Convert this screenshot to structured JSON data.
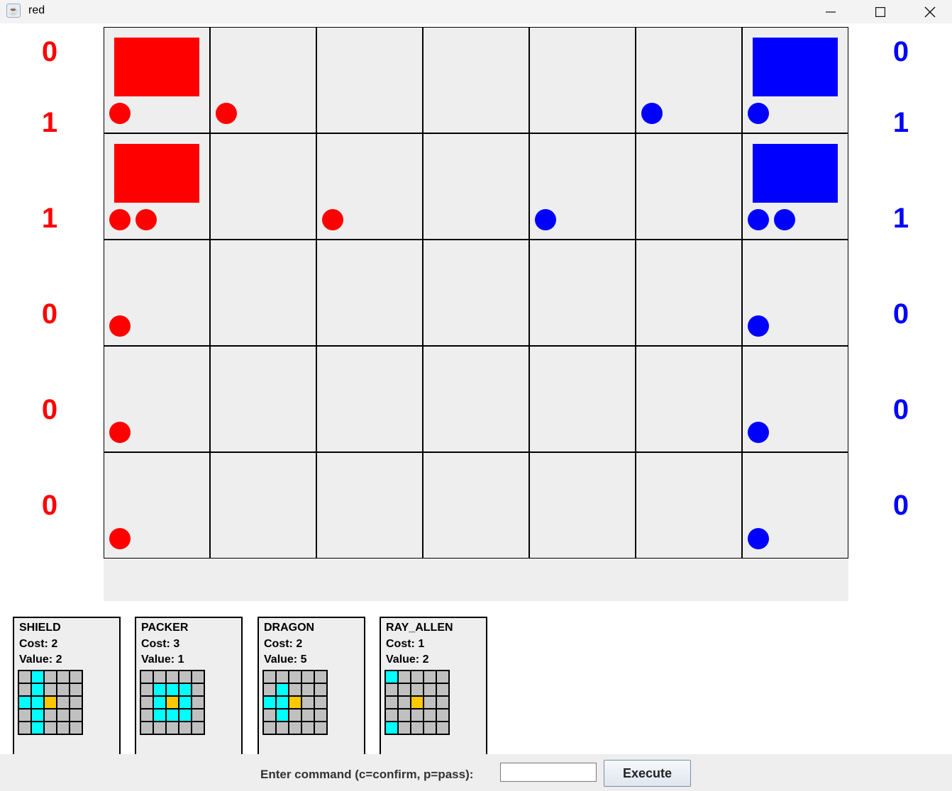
{
  "window": {
    "title": "red",
    "controls": [
      "minimize-icon",
      "maximize-icon",
      "close-icon"
    ]
  },
  "colors": {
    "red": "#ff0000",
    "blue": "#0000ff",
    "cell": "#eeeeee",
    "pattern_empty": "#c0c0c0",
    "pattern_range": "#00ffff",
    "pattern_center": "#ffc800"
  },
  "board": {
    "rows": 5,
    "cols": 7,
    "cells": [
      {
        "row": 0,
        "col": 0,
        "base": "red",
        "pieces": [
          "red"
        ]
      },
      {
        "row": 0,
        "col": 1,
        "pieces": [
          "red"
        ]
      },
      {
        "row": 0,
        "col": 5,
        "pieces": [
          "blue"
        ]
      },
      {
        "row": 0,
        "col": 6,
        "base": "blue",
        "pieces": [
          "blue"
        ]
      },
      {
        "row": 1,
        "col": 0,
        "base": "red",
        "pieces": [
          "red",
          "red"
        ]
      },
      {
        "row": 1,
        "col": 2,
        "pieces": [
          "red"
        ]
      },
      {
        "row": 1,
        "col": 4,
        "pieces": [
          "blue"
        ]
      },
      {
        "row": 1,
        "col": 6,
        "base": "blue",
        "pieces": [
          "blue",
          "blue"
        ]
      },
      {
        "row": 2,
        "col": 0,
        "pieces": [
          "red"
        ]
      },
      {
        "row": 2,
        "col": 6,
        "pieces": [
          "blue"
        ]
      },
      {
        "row": 3,
        "col": 0,
        "pieces": [
          "red"
        ]
      },
      {
        "row": 3,
        "col": 6,
        "pieces": [
          "blue"
        ]
      },
      {
        "row": 4,
        "col": 0,
        "pieces": [
          "red"
        ]
      },
      {
        "row": 4,
        "col": 6,
        "pieces": [
          "blue"
        ]
      }
    ]
  },
  "scores": {
    "red": [
      "0",
      "1",
      "1",
      "0",
      "0",
      "0"
    ],
    "blue": [
      "0",
      "1",
      "1",
      "0",
      "0",
      "0"
    ]
  },
  "cards": [
    {
      "name": "SHIELD",
      "cost": "Cost: 2",
      "value": "Value: 2",
      "pattern": [
        [
          0,
          1,
          0,
          0,
          0
        ],
        [
          0,
          1,
          0,
          0,
          0
        ],
        [
          1,
          1,
          2,
          0,
          0
        ],
        [
          0,
          1,
          0,
          0,
          0
        ],
        [
          0,
          1,
          0,
          0,
          0
        ]
      ]
    },
    {
      "name": "PACKER",
      "cost": "Cost: 3",
      "value": "Value: 1",
      "pattern": [
        [
          0,
          0,
          0,
          0,
          0
        ],
        [
          0,
          1,
          1,
          1,
          0
        ],
        [
          0,
          1,
          2,
          1,
          0
        ],
        [
          0,
          1,
          1,
          1,
          0
        ],
        [
          0,
          0,
          0,
          0,
          0
        ]
      ]
    },
    {
      "name": "DRAGON",
      "cost": "Cost: 2",
      "value": "Value: 5",
      "pattern": [
        [
          0,
          0,
          0,
          0,
          0
        ],
        [
          0,
          1,
          0,
          0,
          0
        ],
        [
          1,
          1,
          2,
          0,
          0
        ],
        [
          0,
          1,
          0,
          0,
          0
        ],
        [
          0,
          0,
          0,
          0,
          0
        ]
      ]
    },
    {
      "name": "RAY_ALLEN",
      "cost": "Cost: 1",
      "value": "Value: 2",
      "pattern": [
        [
          1,
          0,
          0,
          0,
          0
        ],
        [
          0,
          0,
          0,
          0,
          0
        ],
        [
          0,
          0,
          2,
          0,
          0
        ],
        [
          0,
          0,
          0,
          0,
          0
        ],
        [
          1,
          0,
          0,
          0,
          0
        ]
      ]
    }
  ],
  "command": {
    "label": "Enter command (c=confirm, p=pass):",
    "value": "",
    "button": "Execute"
  }
}
